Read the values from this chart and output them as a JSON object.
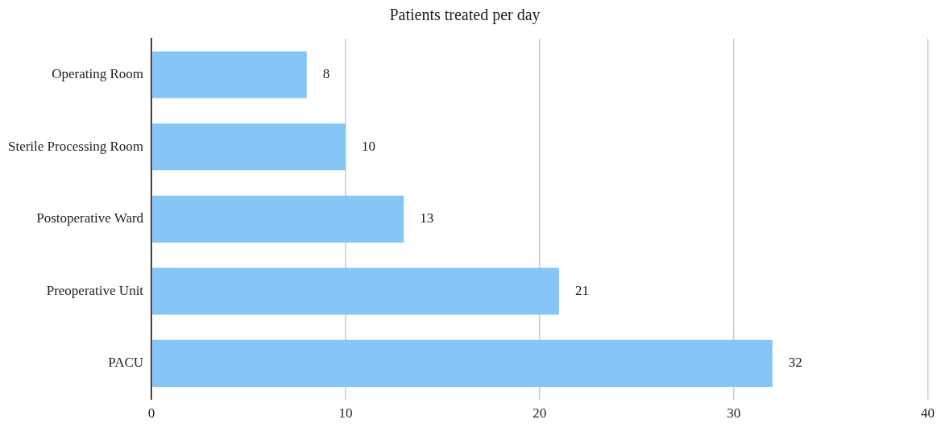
{
  "chart_data": {
    "type": "bar",
    "orientation": "horizontal",
    "title": "Patients treated per day",
    "categories": [
      "Operating Room",
      "Sterile Processing Room",
      "Postoperative Ward",
      "Preoperative Unit",
      "PACU"
    ],
    "values": [
      8,
      10,
      13,
      21,
      32
    ],
    "color": "#86c6f6",
    "xlim": [
      0,
      40
    ],
    "xticks": [
      0,
      10,
      20,
      30,
      40
    ],
    "grid": "x",
    "data_labels": true,
    "legend": false
  }
}
